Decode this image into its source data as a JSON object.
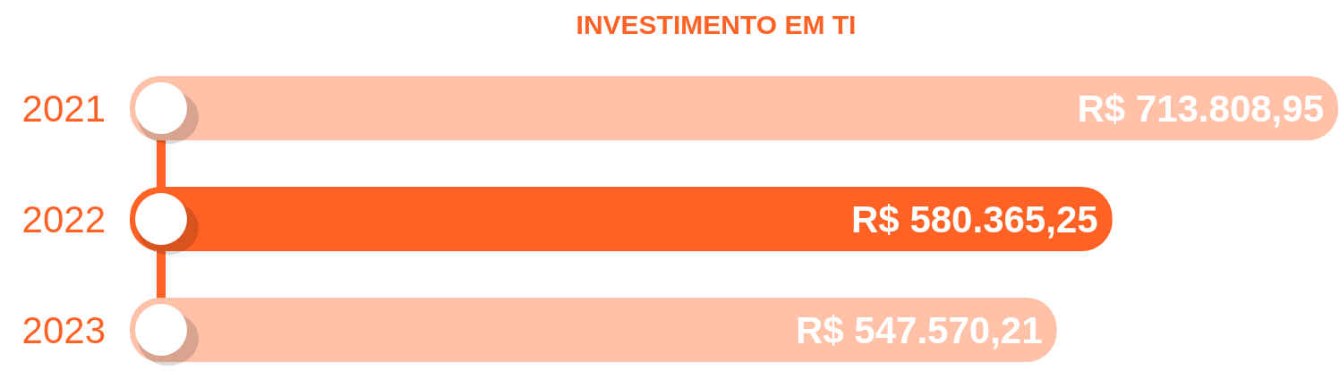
{
  "chart_data": {
    "type": "bar",
    "orientation": "horizontal",
    "title": "INVESTIMENTO EM TI",
    "categories": [
      "2021",
      "2022",
      "2023"
    ],
    "values": [
      713808.95,
      580365.25,
      547570.21
    ],
    "colors": [
      "#ffc1a8",
      "#ff6224",
      "#ffc1a8"
    ],
    "value_labels": [
      "R$ 713.808,95",
      "R$ 580.365,25",
      "R$ 547.570,21"
    ]
  }
}
